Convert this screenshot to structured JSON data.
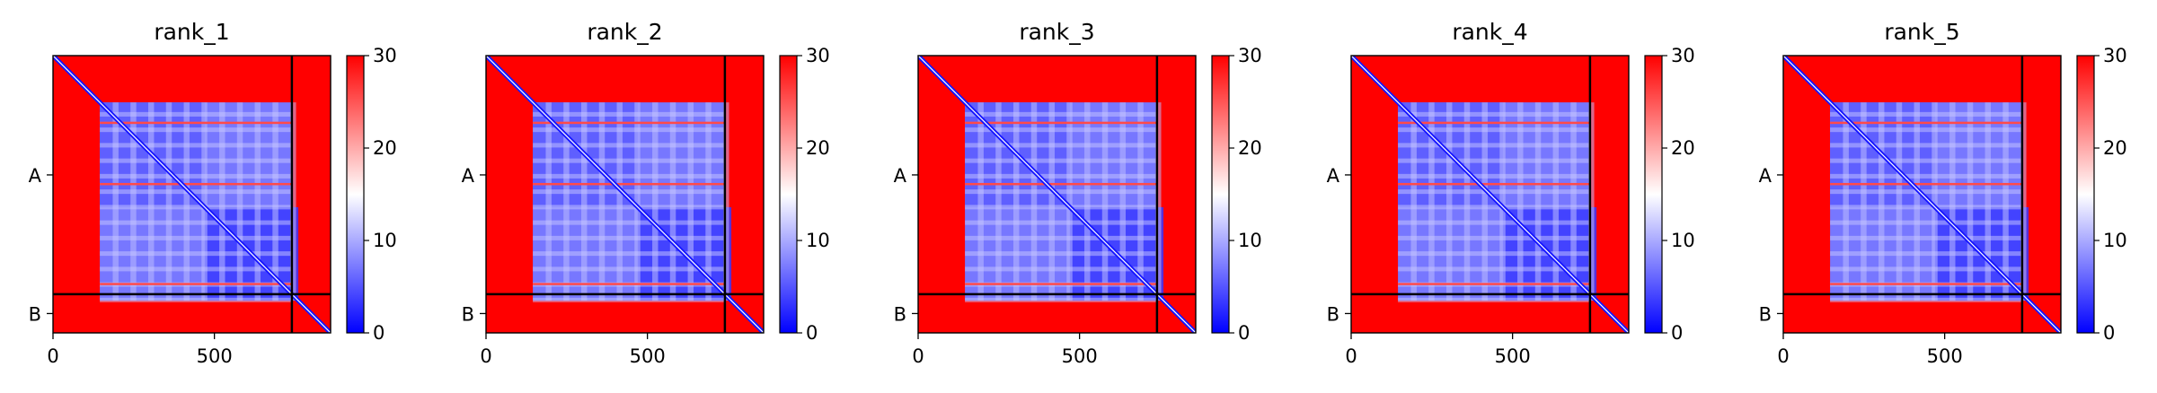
{
  "chart_data": [
    {
      "type": "heatmap",
      "title": "rank_1",
      "xlabel": "",
      "ylabel": "",
      "x_ticks": [
        0,
        500
      ],
      "y_tick_labels": [
        "A",
        "B"
      ],
      "chain_lengths": {
        "A": 740,
        "B": 120
      },
      "total_length": 860,
      "colorbar": {
        "min": 0,
        "max": 30,
        "ticks": [
          0,
          10,
          20,
          30
        ],
        "colormap": "bwr",
        "colors": [
          "#0000ff",
          "#ffffff",
          "#ff0000"
        ]
      },
      "structured_region": [
        145,
        760
      ],
      "low_error_blocks": [
        [
          145,
          470
        ],
        [
          470,
          760
        ]
      ],
      "high_error_stripes": [
        205,
        395,
        705
      ]
    },
    {
      "type": "heatmap",
      "title": "rank_2",
      "xlabel": "",
      "ylabel": "",
      "x_ticks": [
        0,
        500
      ],
      "y_tick_labels": [
        "A",
        "B"
      ],
      "chain_lengths": {
        "A": 740,
        "B": 120
      },
      "total_length": 860,
      "colorbar": {
        "min": 0,
        "max": 30,
        "ticks": [
          0,
          10,
          20,
          30
        ],
        "colormap": "bwr",
        "colors": [
          "#0000ff",
          "#ffffff",
          "#ff0000"
        ]
      },
      "structured_region": [
        145,
        760
      ],
      "low_error_blocks": [
        [
          145,
          470
        ],
        [
          470,
          760
        ]
      ],
      "high_error_stripes": [
        205,
        395,
        705
      ]
    },
    {
      "type": "heatmap",
      "title": "rank_3",
      "xlabel": "",
      "ylabel": "",
      "x_ticks": [
        0,
        500
      ],
      "y_tick_labels": [
        "A",
        "B"
      ],
      "chain_lengths": {
        "A": 740,
        "B": 120
      },
      "total_length": 860,
      "colorbar": {
        "min": 0,
        "max": 30,
        "ticks": [
          0,
          10,
          20,
          30
        ],
        "colormap": "bwr",
        "colors": [
          "#0000ff",
          "#ffffff",
          "#ff0000"
        ]
      },
      "structured_region": [
        145,
        760
      ],
      "low_error_blocks": [
        [
          145,
          470
        ],
        [
          470,
          760
        ]
      ],
      "high_error_stripes": [
        205,
        395,
        705
      ]
    },
    {
      "type": "heatmap",
      "title": "rank_4",
      "xlabel": "",
      "ylabel": "",
      "x_ticks": [
        0,
        500
      ],
      "y_tick_labels": [
        "A",
        "B"
      ],
      "chain_lengths": {
        "A": 740,
        "B": 120
      },
      "total_length": 860,
      "colorbar": {
        "min": 0,
        "max": 30,
        "ticks": [
          0,
          10,
          20,
          30
        ],
        "colormap": "bwr",
        "colors": [
          "#0000ff",
          "#ffffff",
          "#ff0000"
        ]
      },
      "structured_region": [
        145,
        760
      ],
      "low_error_blocks": [
        [
          145,
          470
        ],
        [
          470,
          760
        ]
      ],
      "high_error_stripes": [
        205,
        395,
        705
      ]
    },
    {
      "type": "heatmap",
      "title": "rank_5",
      "xlabel": "",
      "ylabel": "",
      "x_ticks": [
        0,
        500
      ],
      "y_tick_labels": [
        "A",
        "B"
      ],
      "chain_lengths": {
        "A": 740,
        "B": 120
      },
      "total_length": 860,
      "colorbar": {
        "min": 0,
        "max": 30,
        "ticks": [
          0,
          10,
          20,
          30
        ],
        "colormap": "bwr",
        "colors": [
          "#0000ff",
          "#ffffff",
          "#ff0000"
        ]
      },
      "structured_region": [
        145,
        760
      ],
      "low_error_blocks": [
        [
          145,
          470
        ],
        [
          470,
          760
        ]
      ],
      "high_error_stripes": [
        205,
        395,
        705
      ]
    }
  ]
}
